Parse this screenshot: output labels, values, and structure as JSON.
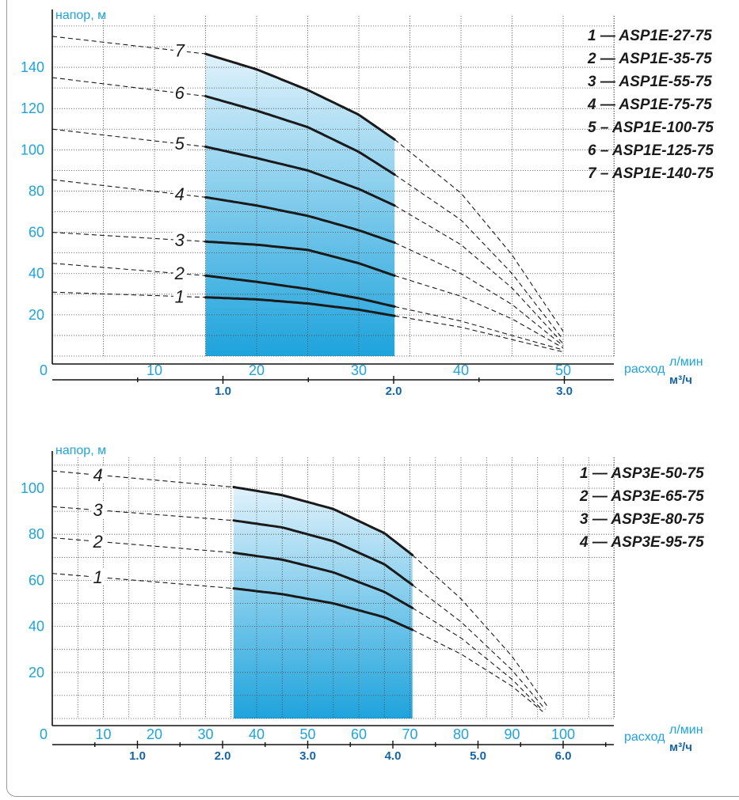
{
  "colors": {
    "axis_text": "#1ea3dc",
    "m3h_text": "#1565a6",
    "fill_top": "#e0f2fb",
    "fill_bottom": "#1ea3dc",
    "curve": "#1a1a1a"
  },
  "chart_data": [
    {
      "type": "line",
      "ylabel": "напор, м",
      "xlabel": "расход",
      "x_unit_top": "л/мин",
      "x_unit_bottom": "м³/ч",
      "origin_label": "0",
      "ylim": [
        0,
        160
      ],
      "xlim": [
        0,
        55
      ],
      "yticks": [
        20,
        40,
        60,
        80,
        100,
        120,
        140
      ],
      "xticks": [
        10,
        20,
        30,
        40,
        50
      ],
      "m3h_ticks": [
        {
          "value": 1.0,
          "label": "1.0"
        },
        {
          "value": 2.0,
          "label": "2.0"
        },
        {
          "value": 3.0,
          "label": "3.0"
        }
      ],
      "grid": true,
      "working_range": [
        15,
        33.5
      ],
      "series": [
        {
          "name": "1 — ASP1E-27-75",
          "label": "1",
          "points": [
            [
              0,
              31
            ],
            [
              15,
              28.5
            ],
            [
              20,
              27.5
            ],
            [
              25,
              25.5
            ],
            [
              30,
              22.5
            ],
            [
              33.5,
              19.5
            ],
            [
              40,
              14
            ],
            [
              45,
              8
            ],
            [
              50,
              2
            ]
          ]
        },
        {
          "name": "2 — ASP1E-35-75",
          "label": "2",
          "points": [
            [
              0,
              45
            ],
            [
              15,
              39
            ],
            [
              20,
              36
            ],
            [
              25,
              32.5
            ],
            [
              30,
              28
            ],
            [
              33.5,
              24
            ],
            [
              40,
              17
            ],
            [
              45,
              10
            ],
            [
              50,
              3
            ]
          ]
        },
        {
          "name": "3 — ASP1E-55-75",
          "label": "3",
          "points": [
            [
              0,
              60
            ],
            [
              15,
              55.5
            ],
            [
              20,
              54
            ],
            [
              25,
              51.5
            ],
            [
              30,
              45
            ],
            [
              33.5,
              39
            ],
            [
              40,
              29
            ],
            [
              45,
              18
            ],
            [
              50,
              4
            ]
          ]
        },
        {
          "name": "4 — ASP1E-75-75",
          "label": "4",
          "points": [
            [
              0,
              85.5
            ],
            [
              15,
              77
            ],
            [
              20,
              73
            ],
            [
              25,
              68
            ],
            [
              30,
              61
            ],
            [
              33.5,
              55
            ],
            [
              40,
              40
            ],
            [
              45,
              25
            ],
            [
              50,
              5
            ]
          ]
        },
        {
          "name": "5 – ASP1E-100-75",
          "label": "5",
          "points": [
            [
              0,
              110
            ],
            [
              15,
              101.5
            ],
            [
              20,
              96
            ],
            [
              25,
              90
            ],
            [
              30,
              81
            ],
            [
              33.5,
              73
            ],
            [
              40,
              54
            ],
            [
              45,
              33
            ],
            [
              50,
              6
            ]
          ]
        },
        {
          "name": "6 – ASP1E-125-75",
          "label": "6",
          "points": [
            [
              0,
              135
            ],
            [
              15,
              126
            ],
            [
              20,
              119
            ],
            [
              25,
              111
            ],
            [
              30,
              99
            ],
            [
              33.5,
              88
            ],
            [
              40,
              66
            ],
            [
              45,
              40
            ],
            [
              50,
              8
            ]
          ]
        },
        {
          "name": "7 – ASP1E-140-75",
          "label": "7",
          "points": [
            [
              0,
              155
            ],
            [
              15,
              146.5
            ],
            [
              20,
              139
            ],
            [
              25,
              129
            ],
            [
              30,
              117
            ],
            [
              33.5,
              105
            ],
            [
              40,
              79
            ],
            [
              45,
              49
            ],
            [
              50,
              12
            ]
          ]
        }
      ]
    },
    {
      "type": "line",
      "ylabel": "напор, м",
      "xlabel": "расход",
      "x_unit_top": "л/мин",
      "x_unit_bottom": "м³/ч",
      "origin_label": "0",
      "ylim": [
        0,
        110
      ],
      "xlim": [
        0,
        110
      ],
      "yticks": [
        20,
        40,
        60,
        80,
        100
      ],
      "xticks": [
        10,
        20,
        30,
        40,
        50,
        60,
        70,
        80,
        90,
        100
      ],
      "m3h_ticks": [
        {
          "value": 1.0,
          "label": "1.0"
        },
        {
          "value": 2.0,
          "label": "2.0"
        },
        {
          "value": 3.0,
          "label": "3.0"
        },
        {
          "value": 4.0,
          "label": "4.0"
        },
        {
          "value": 5.0,
          "label": "5.0"
        },
        {
          "value": 6.0,
          "label": "6.0"
        }
      ],
      "grid": true,
      "working_range": [
        35.5,
        70.5
      ],
      "series": [
        {
          "name": "1 — ASP3E-50-75",
          "label": "1",
          "points": [
            [
              0,
              63
            ],
            [
              35.5,
              56.5
            ],
            [
              45,
              54
            ],
            [
              55,
              50
            ],
            [
              65,
              44
            ],
            [
              70.5,
              38.5
            ],
            [
              80,
              28
            ],
            [
              90,
              14
            ],
            [
              96,
              3
            ]
          ]
        },
        {
          "name": "2 — ASP3E-65-75",
          "label": "2",
          "points": [
            [
              0,
              78.5
            ],
            [
              35.5,
              72
            ],
            [
              45,
              69
            ],
            [
              55,
              63.5
            ],
            [
              65,
              55
            ],
            [
              70.5,
              48
            ],
            [
              80,
              35
            ],
            [
              90,
              17
            ],
            [
              96,
              3.5
            ]
          ]
        },
        {
          "name": "3 — ASP3E-80-75",
          "label": "3",
          "points": [
            [
              0,
              92
            ],
            [
              35.5,
              86
            ],
            [
              45,
              83
            ],
            [
              55,
              77
            ],
            [
              65,
              67
            ],
            [
              70.5,
              58
            ],
            [
              80,
              42
            ],
            [
              90,
              21
            ],
            [
              96.5,
              4
            ]
          ]
        },
        {
          "name": "4 — ASP3E-95-75",
          "label": "4",
          "points": [
            [
              0,
              107.5
            ],
            [
              35.5,
              100.5
            ],
            [
              45,
              97
            ],
            [
              55,
              91
            ],
            [
              65,
              80.5
            ],
            [
              70.5,
              71
            ],
            [
              80,
              52
            ],
            [
              90,
              27
            ],
            [
              97,
              5
            ]
          ]
        }
      ]
    }
  ]
}
